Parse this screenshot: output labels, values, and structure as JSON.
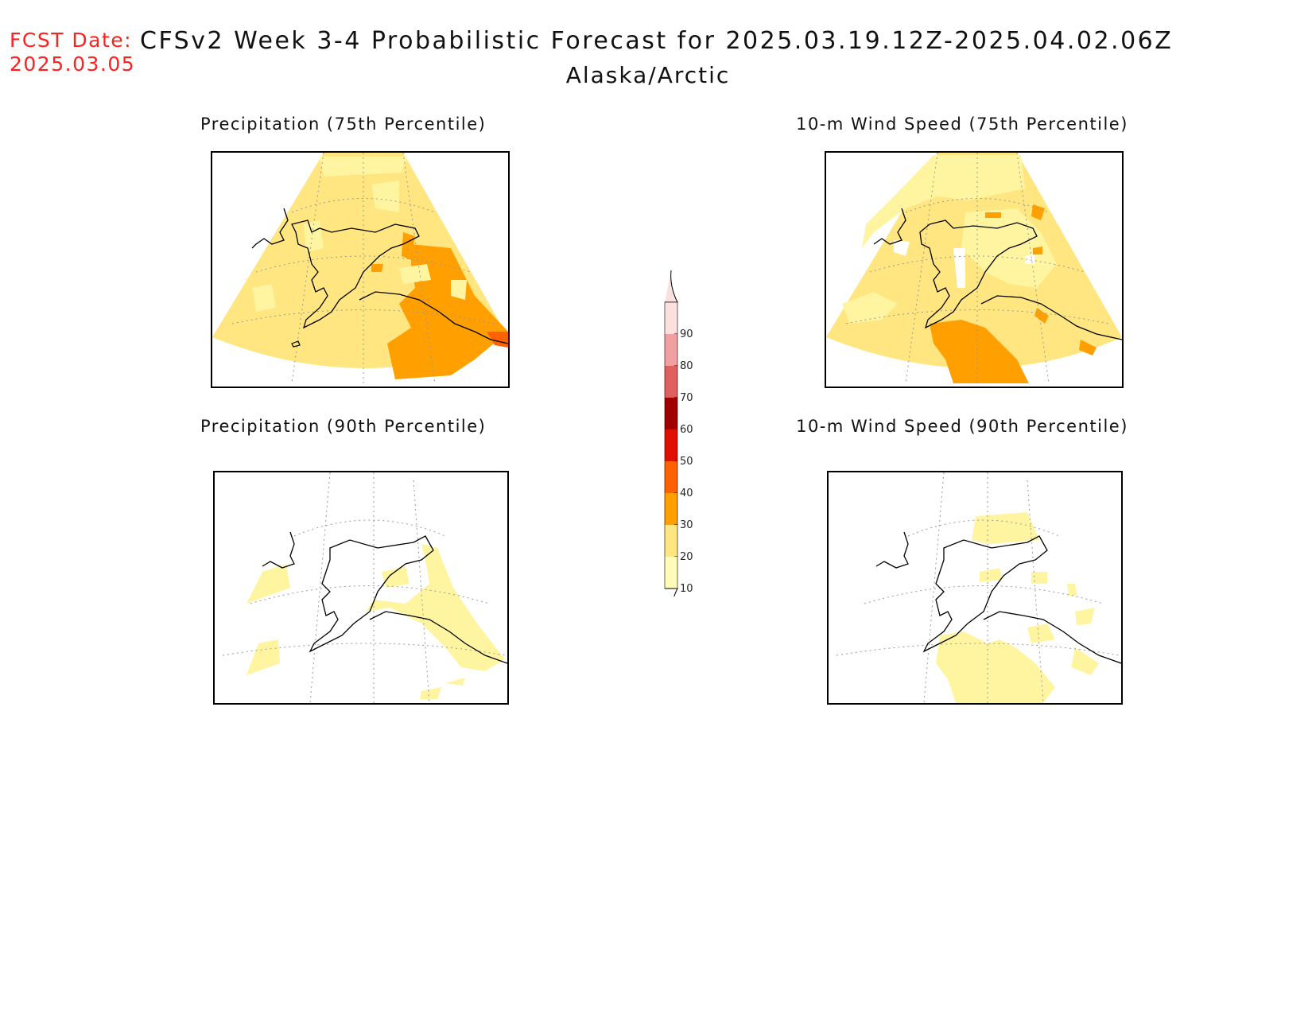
{
  "header": {
    "fcst_label": "FCST Date:",
    "fcst_date": "2025.03.05",
    "title": "CFSv2 Week 3-4 Probabilistic Forecast for 2025.03.19.12Z-2025.04.02.06Z",
    "region": "Alaska/Arctic"
  },
  "panels": [
    {
      "id": "precip75",
      "title": "Precipitation (75th Percentile)"
    },
    {
      "id": "wind75",
      "title": "10-m Wind Speed (75th Percentile)"
    },
    {
      "id": "precip90",
      "title": "Precipitation (90th Percentile)"
    },
    {
      "id": "wind90",
      "title": "10-m Wind Speed (90th Percentile)"
    }
  ],
  "colorbar": {
    "levels": [
      {
        "label": "10",
        "color": "#fffcb8"
      },
      {
        "label": "20",
        "color": "#ffe680"
      },
      {
        "label": "30",
        "color": "#ffa000"
      },
      {
        "label": "40",
        "color": "#ff6000"
      },
      {
        "label": "50",
        "color": "#e01000"
      },
      {
        "label": "60",
        "color": "#a00000"
      },
      {
        "label": "70",
        "color": "#e06060"
      },
      {
        "label": "80",
        "color": "#f0a0a0"
      },
      {
        "label": "90",
        "color": "#fbe0e0"
      }
    ]
  }
}
